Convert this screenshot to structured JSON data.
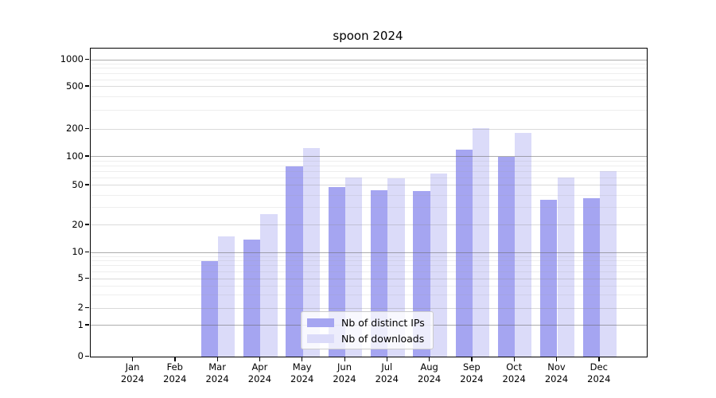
{
  "title": "spoon 2024",
  "chart_data": {
    "type": "bar",
    "title": "spoon 2024",
    "categories": [
      "Jan 2024",
      "Feb 2024",
      "Mar 2024",
      "Apr 2024",
      "May 2024",
      "Jun 2024",
      "Jul 2024",
      "Aug 2024",
      "Sep 2024",
      "Oct 2024",
      "Nov 2024",
      "Dec 2024"
    ],
    "series": [
      {
        "name": "Nb of distinct IPs",
        "color": "#a5a5f1",
        "values": [
          0,
          0,
          8,
          14,
          80,
          48,
          45,
          44,
          120,
          100,
          36,
          37
        ]
      },
      {
        "name": "Nb of downloads",
        "color": "#dbdbf9",
        "values": [
          0,
          0,
          15,
          26,
          125,
          61,
          60,
          67,
          205,
          180,
          61,
          71
        ]
      }
    ],
    "xlabel": "",
    "ylabel": "",
    "yscale": "symlog",
    "yticks": [
      0,
      1,
      2,
      5,
      10,
      20,
      50,
      100,
      200,
      500,
      1000
    ],
    "ylim": [
      0,
      1500
    ],
    "grid": true,
    "legend_position": "lower-center",
    "colors": {
      "axis": "#000000",
      "grid_major": "#696969",
      "grid_minor": "#a0a0a0",
      "background": "#ffffff"
    }
  }
}
